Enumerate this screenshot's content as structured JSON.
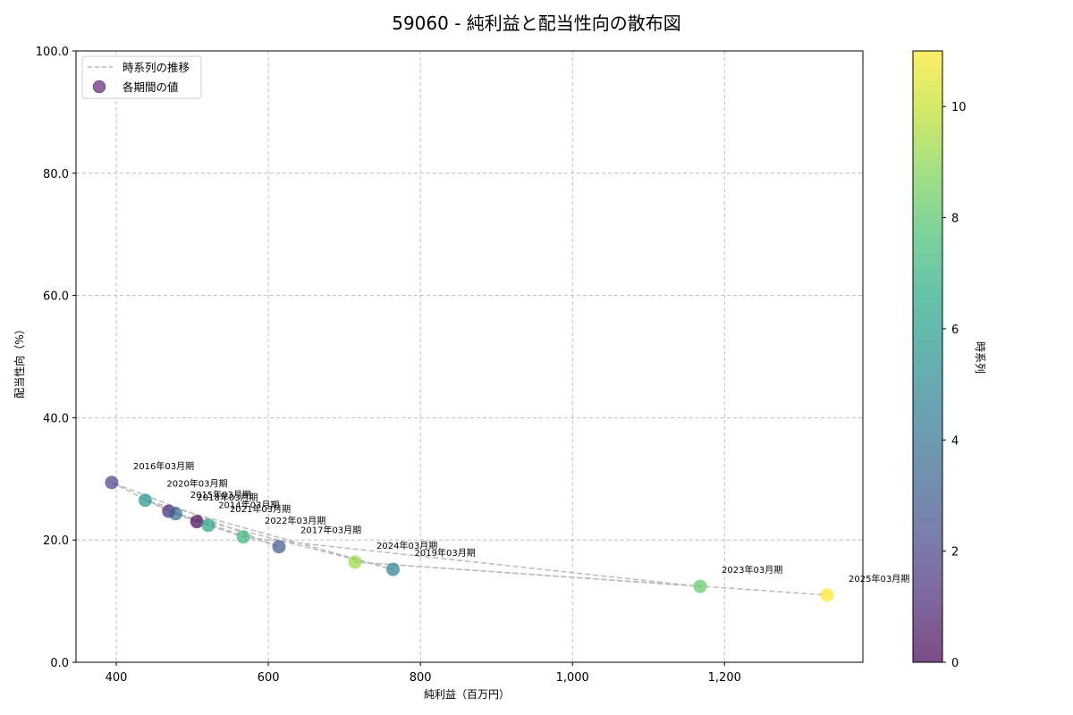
{
  "chart_data": {
    "type": "scatter",
    "title": "59060 - 純利益と配当性向の散布図",
    "xlabel": "純利益（百万円）",
    "ylabel": "配当性向（%）",
    "xlim": [
      347,
      1382
    ],
    "ylim": [
      0,
      100
    ],
    "grid": true,
    "x_ticks": [
      400,
      600,
      800,
      1000,
      1200
    ],
    "x_tick_labels": [
      "400",
      "600",
      "800",
      "1,000",
      "1,200"
    ],
    "y_ticks": [
      0,
      20,
      40,
      60,
      80,
      100
    ],
    "y_tick_labels": [
      "0.0",
      "20.0",
      "40.0",
      "60.0",
      "80.0",
      "100.0"
    ],
    "legend": {
      "position": "upper left",
      "entries": [
        {
          "label": "時系列の推移",
          "type": "dashed-line",
          "color": "#bbbbbb"
        },
        {
          "label": "各期間の値",
          "type": "marker",
          "color": "#7a4a8c"
        }
      ]
    },
    "colorbar": {
      "label": "時系列",
      "range": [
        0,
        11
      ],
      "ticks": [
        0,
        2,
        4,
        6,
        8,
        10
      ],
      "colormap": "viridis"
    },
    "points": [
      {
        "period": "2014年03月期",
        "t": 0,
        "x": 506,
        "y": 23.0,
        "color": "#440154"
      },
      {
        "period": "2015年03月期",
        "t": 1,
        "x": 469,
        "y": 24.7,
        "color": "#482172"
      },
      {
        "period": "2016年03月期",
        "t": 2,
        "x": 394,
        "y": 29.4,
        "color": "#423f85"
      },
      {
        "period": "2017年03月期",
        "t": 3,
        "x": 614,
        "y": 18.9,
        "color": "#3a568c"
      },
      {
        "period": "2018年03月期",
        "t": 4,
        "x": 478,
        "y": 24.3,
        "color": "#30698e"
      },
      {
        "period": "2019年03月期",
        "t": 5,
        "x": 764,
        "y": 15.2,
        "color": "#287d8e"
      },
      {
        "period": "2020年03月期",
        "t": 6,
        "x": 438,
        "y": 26.5,
        "color": "#21918c"
      },
      {
        "period": "2021年03月期",
        "t": 7,
        "x": 521,
        "y": 22.4,
        "color": "#20a486"
      },
      {
        "period": "2022年03月期",
        "t": 8,
        "x": 567,
        "y": 20.5,
        "color": "#35b779"
      },
      {
        "period": "2023年03月期",
        "t": 9,
        "x": 1168,
        "y": 12.4,
        "color": "#5ec962"
      },
      {
        "period": "2024年03月期",
        "t": 10,
        "x": 714,
        "y": 16.4,
        "color": "#98d83e"
      },
      {
        "period": "2025年03月期",
        "t": 11,
        "x": 1335,
        "y": 11.0,
        "color": "#fde725"
      }
    ]
  }
}
